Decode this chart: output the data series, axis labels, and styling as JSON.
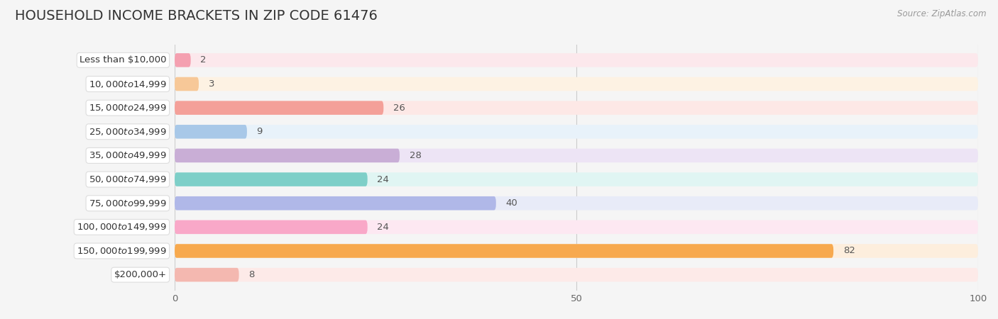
{
  "title": "HOUSEHOLD INCOME BRACKETS IN ZIP CODE 61476",
  "source": "Source: ZipAtlas.com",
  "categories": [
    "Less than $10,000",
    "$10,000 to $14,999",
    "$15,000 to $24,999",
    "$25,000 to $34,999",
    "$35,000 to $49,999",
    "$50,000 to $74,999",
    "$75,000 to $99,999",
    "$100,000 to $149,999",
    "$150,000 to $199,999",
    "$200,000+"
  ],
  "values": [
    2,
    3,
    26,
    9,
    28,
    24,
    40,
    24,
    82,
    8
  ],
  "bar_colors": [
    "#f4a0b0",
    "#f7c898",
    "#f4a099",
    "#a8c8e8",
    "#c9aed6",
    "#7ecfc8",
    "#b0b8e8",
    "#f9a8c8",
    "#f7a94e",
    "#f4b8b0"
  ],
  "bar_bg_colors": [
    "#fce8ec",
    "#fdf2e3",
    "#fde8e6",
    "#e8f2fa",
    "#ede4f5",
    "#e0f5f3",
    "#e8ebf8",
    "#fde8f2",
    "#fdeedd",
    "#fdeae8"
  ],
  "xlim": [
    0,
    100
  ],
  "xticks": [
    0,
    50,
    100
  ],
  "background_color": "#f5f5f5",
  "title_fontsize": 14,
  "label_fontsize": 9.5,
  "value_fontsize": 9.5,
  "bar_height": 0.58
}
